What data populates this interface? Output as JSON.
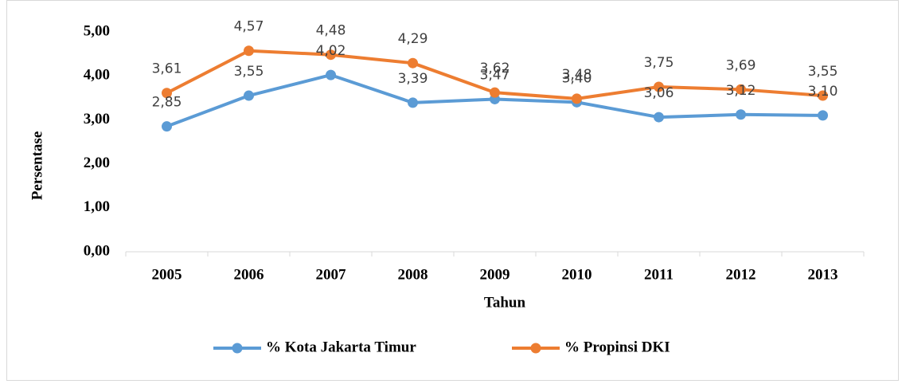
{
  "chart_data": {
    "type": "line",
    "x_label": "Tahun",
    "y_label": "Persentase",
    "categories": [
      "2005",
      "2006",
      "2007",
      "2008",
      "2009",
      "2010",
      "2011",
      "2012",
      "2013"
    ],
    "series": [
      {
        "name": "%  Kota Jakarta Timur",
        "color": "#5b9bd5",
        "values": [
          2.85,
          3.55,
          4.02,
          3.39,
          3.47,
          3.4,
          3.06,
          3.12,
          3.1
        ],
        "value_labels": [
          "2,85",
          "3,55",
          "4,02",
          "3,39",
          "3,47",
          "3,40",
          "3,06",
          "3,12",
          "3,10"
        ]
      },
      {
        "name": "% Propinsi DKI",
        "color": "#ed7d31",
        "values": [
          3.61,
          4.57,
          4.48,
          4.29,
          3.62,
          3.48,
          3.75,
          3.69,
          3.55
        ],
        "value_labels": [
          "3,61",
          "4,57",
          "4,48",
          "4,29",
          "3,62",
          "3,48",
          "3,75",
          "3,69",
          "3,55"
        ]
      }
    ],
    "ylim": [
      0,
      5
    ],
    "yticks": [
      {
        "value": 0,
        "label": "0,00"
      },
      {
        "value": 1,
        "label": "1,00"
      },
      {
        "value": 2,
        "label": "2,00"
      },
      {
        "value": 3,
        "label": "3,00"
      },
      {
        "value": 4,
        "label": "4,00"
      },
      {
        "value": 5,
        "label": "5,00"
      }
    ],
    "legend": "bottom"
  }
}
